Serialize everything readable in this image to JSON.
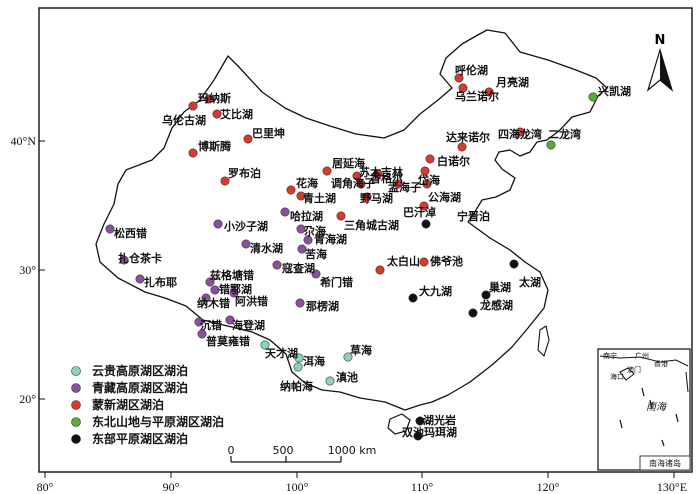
{
  "map": {
    "colors": {
      "yungui": "#8ed1c0",
      "qingzang": "#8a4fa0",
      "mengxin": "#d93a2f",
      "dongbei": "#5aaa3e",
      "dongbu": "#111111"
    },
    "legend": [
      {
        "key": "yungui",
        "label": "云贵高原湖区湖泊"
      },
      {
        "key": "qingzang",
        "label": "青藏高原湖区湖泊"
      },
      {
        "key": "mengxin",
        "label": "蒙新湖区湖泊"
      },
      {
        "key": "dongbei",
        "label": "东北山地与平原湖区湖泊"
      },
      {
        "key": "dongbu",
        "label": "东部平原湖区湖泊"
      }
    ],
    "lakes": [
      {
        "name": "呼伦湖",
        "group": "mengxin"
      },
      {
        "name": "月亮湖",
        "group": "mengxin"
      },
      {
        "name": "乌兰诺尔",
        "group": "mengxin"
      },
      {
        "name": "兴凯湖",
        "group": "dongbei"
      },
      {
        "name": "达来诺尔",
        "group": "mengxin"
      },
      {
        "name": "四海龙湾",
        "group": "mengxin"
      },
      {
        "name": "二龙湾",
        "group": "dongbei"
      },
      {
        "name": "白诺尔",
        "group": "mengxin"
      },
      {
        "name": "玛纳斯",
        "group": "mengxin"
      },
      {
        "name": "乌伦古湖",
        "group": "mengxin"
      },
      {
        "name": "艾比湖",
        "group": "mengxin"
      },
      {
        "name": "巴里坤",
        "group": "mengxin"
      },
      {
        "name": "博斯腾",
        "group": "mengxin"
      },
      {
        "name": "罗布泊",
        "group": "mengxin"
      },
      {
        "name": "居延海",
        "group": "mengxin"
      },
      {
        "name": "苏木吉林",
        "group": "mengxin"
      },
      {
        "name": "香格尔",
        "group": "mengxin"
      },
      {
        "name": "调角海子",
        "group": "mengxin"
      },
      {
        "name": "盂海子",
        "group": "mengxin"
      },
      {
        "name": "岱海",
        "group": "mengxin"
      },
      {
        "name": "公海湖",
        "group": "mengxin"
      },
      {
        "name": "巴汗淖",
        "group": "mengxin"
      },
      {
        "name": "花海",
        "group": "mengxin"
      },
      {
        "name": "青土湖",
        "group": "mengxin"
      },
      {
        "name": "野马湖",
        "group": "mengxin"
      },
      {
        "name": "三角城古湖",
        "group": "mengxin"
      },
      {
        "name": "宁晋泊",
        "group": "dongbu"
      },
      {
        "name": "太白山",
        "group": "mengxin"
      },
      {
        "name": "佛爷池",
        "group": "mengxin"
      },
      {
        "name": "大九湖",
        "group": "dongbu"
      },
      {
        "name": "巢湖",
        "group": "dongbu"
      },
      {
        "name": "太湖",
        "group": "dongbu"
      },
      {
        "name": "龙感湖",
        "group": "dongbu"
      },
      {
        "name": "湖光岩",
        "group": "dongbu"
      },
      {
        "name": "双池玛珥湖",
        "group": "dongbu"
      },
      {
        "name": "松西错",
        "group": "qingzang"
      },
      {
        "name": "扎仓茶卡",
        "group": "qingzang"
      },
      {
        "name": "扎布耶",
        "group": "qingzang"
      },
      {
        "name": "小沙子湖",
        "group": "qingzang"
      },
      {
        "name": "哈拉湖",
        "group": "qingzang"
      },
      {
        "name": "尕海",
        "group": "qingzang"
      },
      {
        "name": "青海湖",
        "group": "qingzang"
      },
      {
        "name": "苦海",
        "group": "qingzang"
      },
      {
        "name": "清水湖",
        "group": "qingzang"
      },
      {
        "name": "寇查湖",
        "group": "qingzang"
      },
      {
        "name": "希门错",
        "group": "qingzang"
      },
      {
        "name": "兹格塘错",
        "group": "qingzang"
      },
      {
        "name": "错鄂湖",
        "group": "qingzang"
      },
      {
        "name": "纳木错",
        "group": "qingzang"
      },
      {
        "name": "阿洪错",
        "group": "qingzang"
      },
      {
        "name": "那楞湖",
        "group": "qingzang"
      },
      {
        "name": "沉错",
        "group": "qingzang"
      },
      {
        "name": "海登湖",
        "group": "qingzang"
      },
      {
        "name": "普莫雍错",
        "group": "qingzang"
      },
      {
        "name": "天才湖",
        "group": "yungui"
      },
      {
        "name": "草海",
        "group": "yungui"
      },
      {
        "name": "洱海",
        "group": "yungui"
      },
      {
        "name": "滇池",
        "group": "yungui"
      },
      {
        "name": "纳帕海",
        "group": "yungui"
      }
    ],
    "axes": {
      "x_ticks": [
        "80°",
        "90°",
        "100°",
        "110°",
        "120°",
        "130°E"
      ],
      "y_ticks": [
        "40°N",
        "30°",
        "20°"
      ]
    },
    "scalebar": {
      "ticks": [
        "0",
        "500",
        "1000 km"
      ]
    },
    "north_label": "N",
    "inset": {
      "sea_label": "南海",
      "caption": "南海诸岛",
      "places": [
        "南宁",
        "广州",
        "香港",
        "澳门",
        "海口"
      ]
    }
  }
}
